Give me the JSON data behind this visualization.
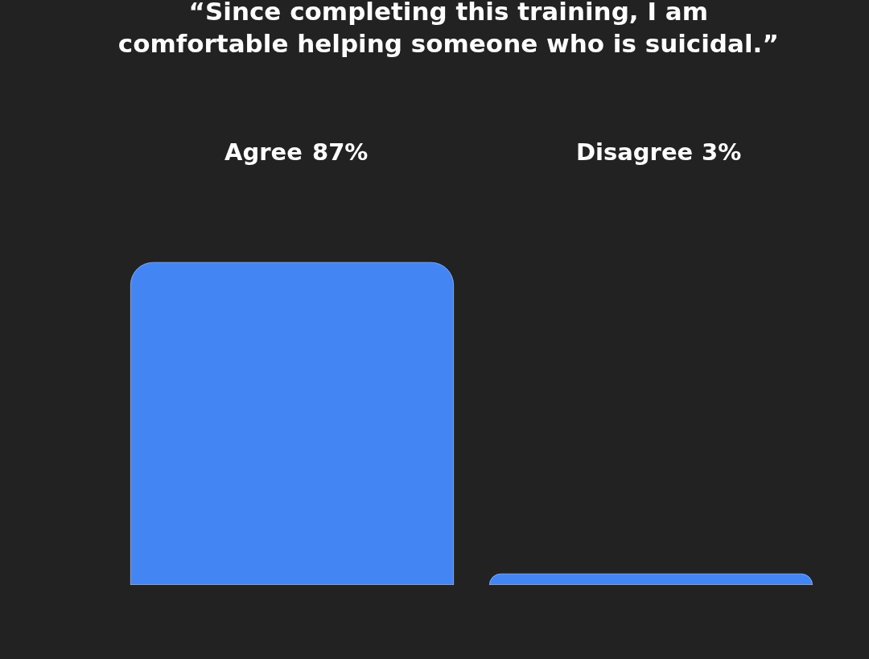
{
  "chart_data": {
    "type": "bar",
    "title": "“Since completing this training, I am\ncomfortable helping someone who is suicidal.”",
    "categories": [
      "Agree",
      "Disagree"
    ],
    "values": [
      87,
      3
    ],
    "value_labels": [
      "87%",
      "3%"
    ],
    "color": "#4485f4",
    "grid": false,
    "legend": false
  }
}
